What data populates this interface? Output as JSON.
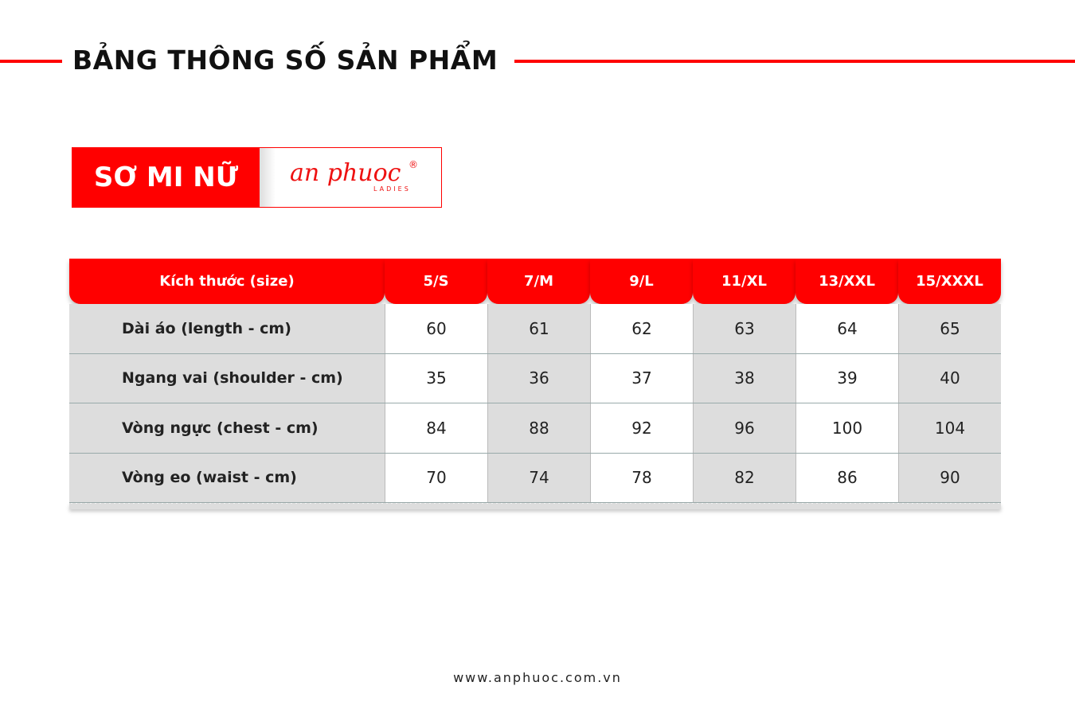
{
  "title": "BẢNG THÔNG SỐ SẢN PHẨM",
  "badge": {
    "label": "SƠ MI NỮ",
    "logo": "an phuoc",
    "logo_sub": "LADIES",
    "logo_mark": "®"
  },
  "table": {
    "header_label": "Kích thước (size)",
    "sizes": [
      "5/S",
      "7/M",
      "9/L",
      "11/XL",
      "13/XXL",
      "15/XXXL"
    ],
    "rows": [
      {
        "label": "Dài áo (length - cm)",
        "values": [
          "60",
          "61",
          "62",
          "63",
          "64",
          "65"
        ]
      },
      {
        "label": "Ngang vai (shoulder - cm)",
        "values": [
          "35",
          "36",
          "37",
          "38",
          "39",
          "40"
        ]
      },
      {
        "label": "Vòng ngực (chest - cm)",
        "values": [
          "84",
          "88",
          "92",
          "96",
          "100",
          "104"
        ]
      },
      {
        "label": "Vòng eo (waist - cm)",
        "values": [
          "70",
          "74",
          "78",
          "82",
          "86",
          "90"
        ]
      }
    ]
  },
  "footer": "www.anphuoc.com.vn",
  "colors": {
    "accent": "#ff0000",
    "row_grey": "#dddddd"
  }
}
